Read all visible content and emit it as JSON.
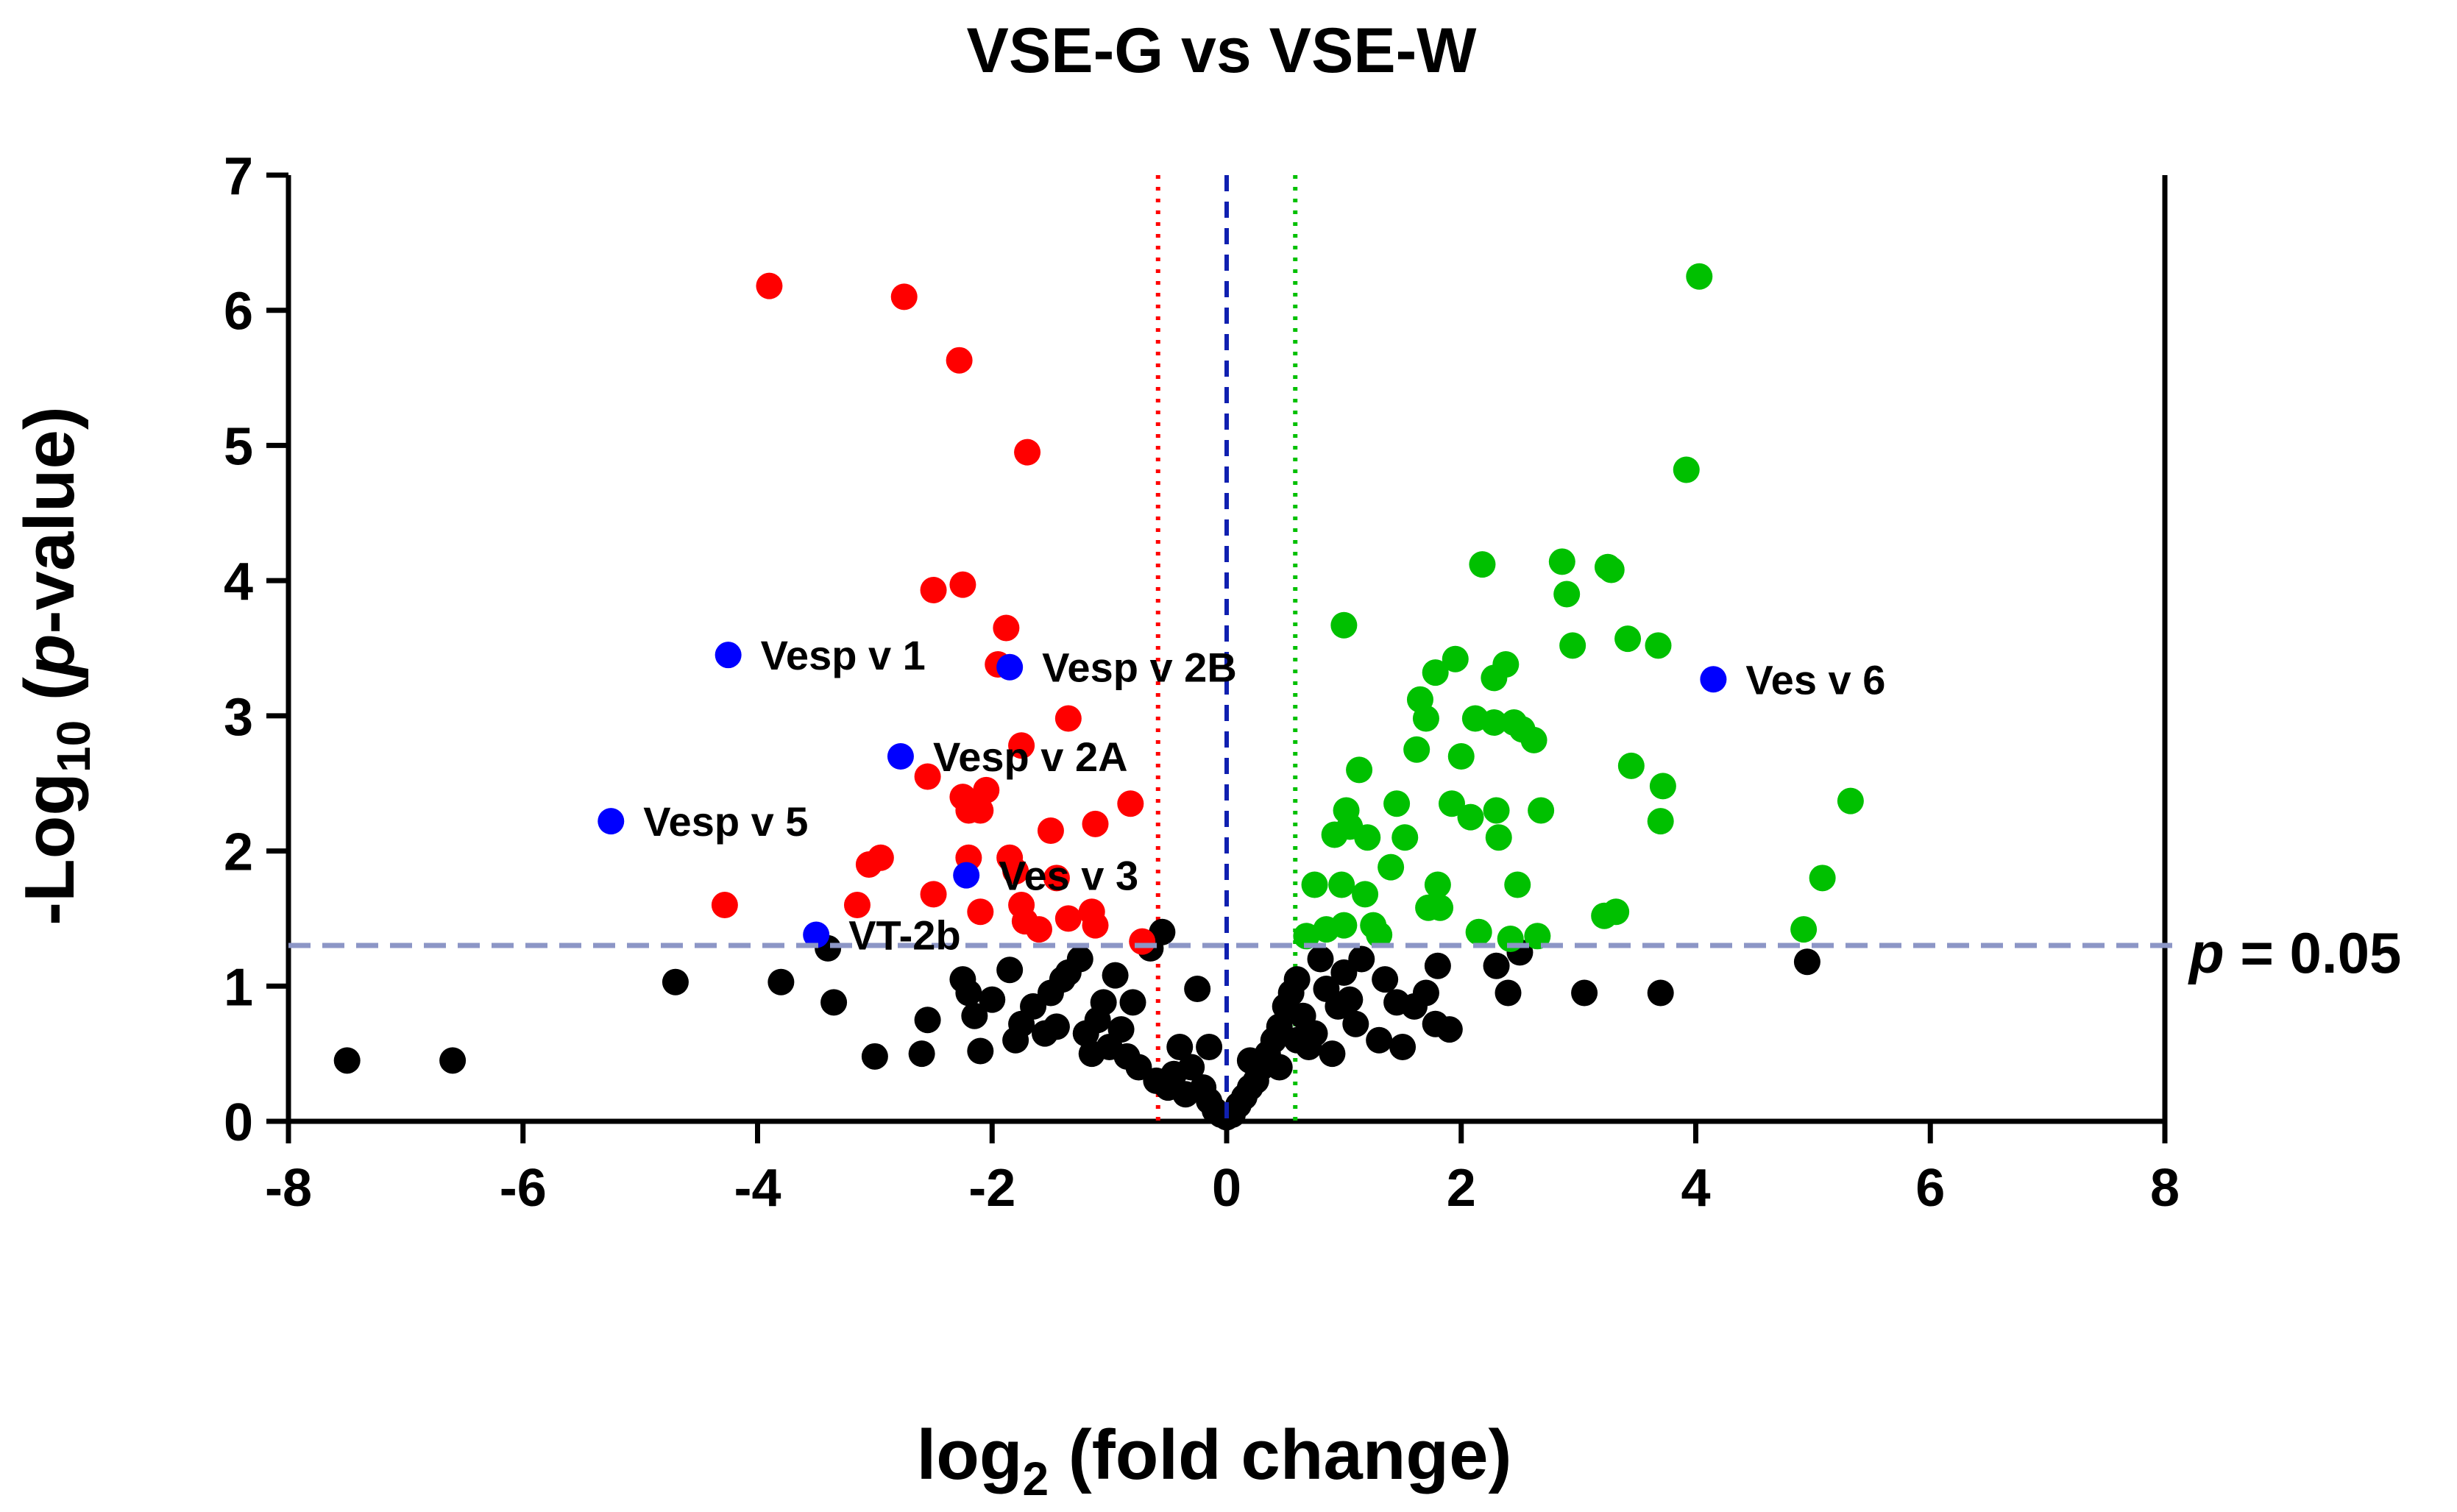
{
  "chart_data": {
    "type": "scatter",
    "title": "VSE-G vs VSE-W",
    "xlabel": {
      "main": "log",
      "sub": "2",
      "rest": " (fold change)"
    },
    "ylabel": {
      "pre": "-Log",
      "sub": "10",
      "open": " (",
      "italic": "p",
      "close": "-value)"
    },
    "xlim": [
      -8,
      8
    ],
    "ylim": [
      0,
      7
    ],
    "xticks": [
      -8,
      -6,
      -4,
      -2,
      0,
      2,
      4,
      6,
      8
    ],
    "yticks": [
      0,
      1,
      2,
      3,
      4,
      5,
      6,
      7
    ],
    "xtick_labels": [
      "-8",
      "-6",
      "-4",
      "-2",
      "0",
      "2",
      "4",
      "6",
      "8"
    ],
    "ytick_labels": [
      "0",
      "1",
      "2",
      "3",
      "4",
      "5",
      "6",
      "7"
    ],
    "colors": {
      "down": "#ff0000",
      "up": "#00c000",
      "ns": "#000000",
      "labeled": "#0000ff",
      "pline": "#8c96c6",
      "zero_line": "#1020b0"
    },
    "reference_lines": {
      "p_threshold_y": 1.301,
      "p_label": {
        "italic": "p",
        "rest": " = 0.05"
      },
      "fold_left_x": -0.585,
      "fold_right_x": 0.585,
      "zero_x": 0
    },
    "series": [
      {
        "color": "#ff0000",
        "points": [
          [
            -3.9,
            6.18
          ],
          [
            -2.75,
            6.1
          ],
          [
            -2.28,
            5.63
          ],
          [
            -1.7,
            4.95
          ],
          [
            -2.5,
            3.93
          ],
          [
            -2.25,
            3.97
          ],
          [
            -1.88,
            3.65
          ],
          [
            -1.95,
            3.38
          ],
          [
            -1.35,
            2.98
          ],
          [
            -1.75,
            2.78
          ],
          [
            -2.55,
            2.55
          ],
          [
            -2.05,
            2.45
          ],
          [
            -2.25,
            2.4
          ],
          [
            -2.2,
            2.3
          ],
          [
            -2.1,
            2.3
          ],
          [
            -1.5,
            2.15
          ],
          [
            -1.12,
            2.2
          ],
          [
            -0.82,
            2.35
          ],
          [
            -2.95,
            1.95
          ],
          [
            -3.05,
            1.9
          ],
          [
            -2.2,
            1.95
          ],
          [
            -1.85,
            1.95
          ],
          [
            -1.8,
            1.85
          ],
          [
            -1.45,
            1.8
          ],
          [
            -2.1,
            1.55
          ],
          [
            -2.5,
            1.68
          ],
          [
            -1.75,
            1.6
          ],
          [
            -1.72,
            1.48
          ],
          [
            -1.6,
            1.42
          ],
          [
            -1.35,
            1.5
          ],
          [
            -1.15,
            1.55
          ],
          [
            -1.12,
            1.45
          ],
          [
            -3.15,
            1.6
          ],
          [
            -4.28,
            1.6
          ],
          [
            -0.72,
            1.33
          ]
        ]
      },
      {
        "color": "#00c000",
        "points": [
          [
            4.03,
            6.25
          ],
          [
            3.92,
            4.82
          ],
          [
            2.18,
            4.12
          ],
          [
            2.86,
            4.14
          ],
          [
            3.25,
            4.1
          ],
          [
            3.28,
            4.08
          ],
          [
            2.9,
            3.9
          ],
          [
            1.0,
            3.67
          ],
          [
            1.95,
            3.42
          ],
          [
            2.95,
            3.52
          ],
          [
            3.42,
            3.57
          ],
          [
            3.68,
            3.52
          ],
          [
            1.78,
            3.32
          ],
          [
            2.38,
            3.38
          ],
          [
            2.28,
            3.28
          ],
          [
            1.65,
            3.12
          ],
          [
            1.7,
            2.98
          ],
          [
            2.12,
            2.98
          ],
          [
            2.28,
            2.95
          ],
          [
            2.45,
            2.95
          ],
          [
            2.52,
            2.9
          ],
          [
            2.62,
            2.82
          ],
          [
            1.62,
            2.75
          ],
          [
            2.0,
            2.7
          ],
          [
            3.45,
            2.63
          ],
          [
            3.72,
            2.48
          ],
          [
            5.32,
            2.37
          ],
          [
            1.13,
            2.6
          ],
          [
            1.92,
            2.35
          ],
          [
            2.08,
            2.25
          ],
          [
            2.3,
            2.3
          ],
          [
            2.68,
            2.3
          ],
          [
            1.45,
            2.35
          ],
          [
            1.02,
            2.3
          ],
          [
            1.05,
            2.18
          ],
          [
            0.92,
            2.12
          ],
          [
            1.2,
            2.1
          ],
          [
            1.52,
            2.1
          ],
          [
            2.32,
            2.1
          ],
          [
            3.7,
            2.22
          ],
          [
            1.4,
            1.88
          ],
          [
            0.75,
            1.75
          ],
          [
            0.98,
            1.75
          ],
          [
            1.18,
            1.68
          ],
          [
            1.8,
            1.75
          ],
          [
            2.48,
            1.75
          ],
          [
            5.08,
            1.8
          ],
          [
            1.72,
            1.58
          ],
          [
            1.82,
            1.58
          ],
          [
            3.22,
            1.52
          ],
          [
            3.32,
            1.55
          ],
          [
            4.92,
            1.42
          ],
          [
            0.68,
            1.37
          ],
          [
            0.85,
            1.42
          ],
          [
            1.0,
            1.45
          ],
          [
            1.25,
            1.45
          ],
          [
            1.3,
            1.38
          ],
          [
            2.15,
            1.4
          ],
          [
            2.42,
            1.35
          ],
          [
            2.65,
            1.37
          ]
        ]
      },
      {
        "color": "#000000",
        "points": [
          [
            -7.5,
            0.45
          ],
          [
            -6.6,
            0.45
          ],
          [
            -4.7,
            1.03
          ],
          [
            -3.8,
            1.03
          ],
          [
            -3.4,
            1.28
          ],
          [
            -3.35,
            0.88
          ],
          [
            -3.0,
            0.48
          ],
          [
            -2.6,
            0.5
          ],
          [
            -2.55,
            0.75
          ],
          [
            -2.25,
            1.05
          ],
          [
            -2.2,
            0.95
          ],
          [
            -2.15,
            0.78
          ],
          [
            -2.1,
            0.52
          ],
          [
            -2.0,
            0.9
          ],
          [
            -1.85,
            1.12
          ],
          [
            -1.8,
            0.6
          ],
          [
            -1.75,
            0.72
          ],
          [
            -1.65,
            0.85
          ],
          [
            -1.55,
            0.65
          ],
          [
            -1.5,
            0.95
          ],
          [
            -1.45,
            0.7
          ],
          [
            -1.4,
            1.05
          ],
          [
            -1.35,
            1.1
          ],
          [
            -1.25,
            1.2
          ],
          [
            -1.2,
            0.65
          ],
          [
            -1.15,
            0.5
          ],
          [
            -1.1,
            0.75
          ],
          [
            -1.05,
            0.88
          ],
          [
            -1.0,
            0.55
          ],
          [
            -0.95,
            1.08
          ],
          [
            -0.9,
            0.68
          ],
          [
            -0.85,
            0.48
          ],
          [
            -0.8,
            0.88
          ],
          [
            -0.75,
            0.4
          ],
          [
            -0.65,
            1.28
          ],
          [
            -0.6,
            0.3
          ],
          [
            -0.55,
            1.4
          ],
          [
            -0.5,
            0.25
          ],
          [
            -0.45,
            0.35
          ],
          [
            -0.35,
            0.2
          ],
          [
            -0.3,
            0.4
          ],
          [
            -0.25,
            0.98
          ],
          [
            -0.2,
            0.25
          ],
          [
            -0.15,
            0.15
          ],
          [
            -0.1,
            0.08
          ],
          [
            -0.05,
            0.05
          ],
          [
            0.0,
            0.03
          ],
          [
            0.05,
            0.05
          ],
          [
            0.1,
            0.12
          ],
          [
            0.15,
            0.18
          ],
          [
            0.2,
            0.25
          ],
          [
            0.25,
            0.3
          ],
          [
            0.3,
            0.4
          ],
          [
            0.35,
            0.5
          ],
          [
            0.4,
            0.6
          ],
          [
            0.45,
            0.7
          ],
          [
            0.5,
            0.85
          ],
          [
            0.55,
            0.95
          ],
          [
            0.6,
            1.05
          ],
          [
            0.65,
            0.78
          ],
          [
            0.7,
            0.55
          ],
          [
            0.75,
            0.65
          ],
          [
            0.8,
            1.2
          ],
          [
            0.85,
            0.98
          ],
          [
            0.9,
            0.5
          ],
          [
            0.95,
            0.85
          ],
          [
            1.0,
            1.1
          ],
          [
            1.05,
            0.9
          ],
          [
            1.1,
            0.72
          ],
          [
            1.15,
            1.2
          ],
          [
            1.3,
            0.6
          ],
          [
            1.35,
            1.05
          ],
          [
            1.45,
            0.88
          ],
          [
            1.5,
            0.55
          ],
          [
            1.6,
            0.85
          ],
          [
            1.7,
            0.95
          ],
          [
            1.78,
            0.72
          ],
          [
            1.8,
            1.15
          ],
          [
            1.9,
            0.68
          ],
          [
            2.3,
            1.15
          ],
          [
            2.4,
            0.95
          ],
          [
            2.5,
            1.25
          ],
          [
            3.05,
            0.95
          ],
          [
            3.7,
            0.95
          ],
          [
            4.95,
            1.18
          ],
          [
            -0.15,
            0.55
          ],
          [
            0.2,
            0.45
          ],
          [
            -0.4,
            0.55
          ],
          [
            0.45,
            0.4
          ],
          [
            0.6,
            0.6
          ]
        ]
      },
      {
        "color": "#0000ff",
        "points": [
          [
            -4.25,
            3.45
          ],
          [
            -1.85,
            3.36
          ],
          [
            -2.78,
            2.7
          ],
          [
            -5.25,
            2.22
          ],
          [
            -2.22,
            1.82
          ],
          [
            -3.5,
            1.38
          ],
          [
            4.15,
            3.27
          ]
        ]
      }
    ],
    "labeled_points": [
      {
        "name": "Vesp v 1",
        "x": -4.25,
        "y": 3.45
      },
      {
        "name": "Vesp v 2B",
        "x": -1.85,
        "y": 3.36
      },
      {
        "name": "Vesp v 2A",
        "x": -2.78,
        "y": 2.7
      },
      {
        "name": "Vesp v 5",
        "x": -5.25,
        "y": 2.22
      },
      {
        "name": "Ves v 3",
        "x": -2.22,
        "y": 1.82
      },
      {
        "name": "VT-2b",
        "x": -3.5,
        "y": 1.38
      },
      {
        "name": "Ves v 6",
        "x": 4.15,
        "y": 3.27
      }
    ]
  }
}
